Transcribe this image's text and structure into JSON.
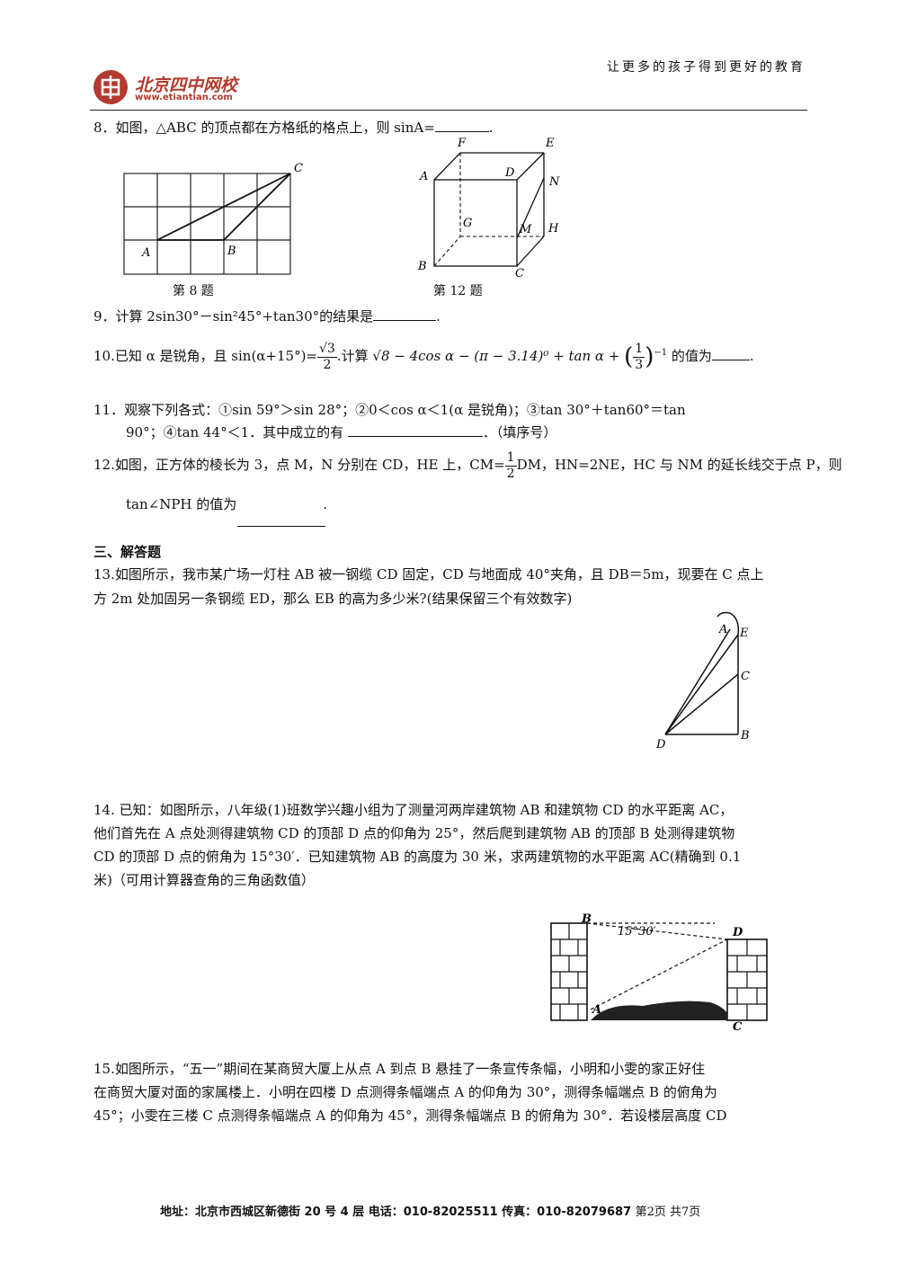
{
  "header": {
    "slogan": "让更多的孩子得到更好的教育",
    "logo_name": "北京四中网校",
    "logo_url": "www.etiantian.com"
  },
  "q8": {
    "text": "8．如图，△ABC 的顶点都在方格纸的格点上，则 sinA=",
    "end": "."
  },
  "fig8": {
    "caption": "第 8 题",
    "labels": {
      "A": "A",
      "B": "B",
      "C": "C"
    }
  },
  "fig12": {
    "caption": "第 12 题",
    "labels": {
      "F": "F",
      "E": "E",
      "A": "A",
      "D": "D",
      "N": "N",
      "G": "G",
      "M": "M",
      "H": "H",
      "B": "B",
      "C": "C"
    }
  },
  "q9": {
    "text": "9．计算 2sin30°－sin²45°+tan30°的结果是",
    "end": "."
  },
  "q10": {
    "a": "10.已知 α 是锐角，且 sin(α+15°)=",
    "frac_num": "√3",
    "frac_den": "2",
    "b": ".计算",
    "expr1": "√8 − 4cos α − (π − 3.14)⁰ + tan α + ",
    "frac2_num": "1",
    "frac2_den": "3",
    "exp": "−1",
    "c": "的值为",
    "end": "."
  },
  "q11": {
    "l1": "11．观察下列各式：①sin 59°＞sin 28°；②0＜cos α＜1(α 是锐角)；③tan 30°＋tan60°＝tan",
    "l2a": "90°；④tan 44°＜1．其中成立的有",
    "l2b": "．（填序号）"
  },
  "q12": {
    "a": "12.如图，正方体的棱长为 3，点 M，N 分别在 CD，HE 上，CM=",
    "frac_num": "1",
    "frac_den": "2",
    "b": "DM，HN=2NE，HC 与 NM 的延长线交于点 P，则",
    "l2": "tan∠NPH 的值为",
    "end": "."
  },
  "section3": "三、解答题",
  "q13": {
    "l1": "13.如图所示，我市某广场一灯柱 AB 被一钢缆 CD 固定，CD 与地面成 40°夹角，且 DB＝5m，现要在 C 点上",
    "l2": "方 2m 处加固另一条钢缆 ED，那么 EB 的高为多少米?(结果保留三个有效数字)"
  },
  "fig13": {
    "labels": {
      "A": "A",
      "E": "E",
      "C": "C",
      "B": "B",
      "D": "D"
    }
  },
  "q14": {
    "l1": "14. 已知：如图所示，八年级(1)班数学兴趣小组为了测量河两岸建筑物 AB 和建筑物 CD 的水平距离 AC，",
    "l2": "他们首先在 A 点处测得建筑物 CD 的顶部 D 点的仰角为 25°，然后爬到建筑物 AB 的顶部 B 处测得建筑物",
    "l3": "CD 的顶部 D 点的俯角为 15°30′．已知建筑物 AB 的高度为 30 米，求两建筑物的水平距离 AC(精确到 0.1",
    "l4": "米)（可用计算器查角的三角函数值）"
  },
  "fig14": {
    "angle": "15°30′",
    "labels": {
      "B": "B",
      "D": "D",
      "A": "A",
      "C": "C"
    }
  },
  "q15": {
    "l1": "15.如图所示，“五一”期间在某商贸大厦上从点 A 到点 B 悬挂了一条宣传条幅，小明和小雯的家正好住",
    "l2": "在商贸大厦对面的家属楼上．小明在四楼 D 点测得条幅端点 A 的仰角为 30°，测得条幅端点 B 的俯角为",
    "l3": "45°；小雯在三楼 C 点测得条幅端点 A 的仰角为 45°，测得条幅端点 B 的俯角为 30°．若设楼层高度 CD"
  },
  "footer": {
    "text": "地址：北京市西城区新德街 20 号 4 层  电话：010-82025511  传真：010-82079687",
    "page": "第2页  共7页"
  }
}
